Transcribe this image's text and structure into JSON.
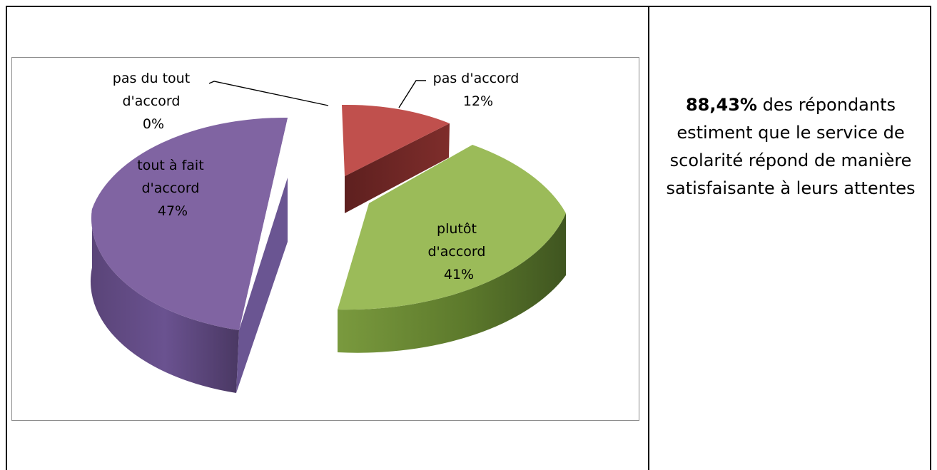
{
  "chart_data": {
    "type": "pie",
    "title": "",
    "categories": [
      "pas d'accord",
      "plutôt d'accord",
      "tout à fait d'accord",
      "pas du tout d'accord"
    ],
    "values": [
      12,
      41,
      47,
      0
    ],
    "unit": "%",
    "labels": [
      {
        "lines": [
          "pas d'accord",
          "12%"
        ]
      },
      {
        "lines": [
          "plutôt",
          "d'accord",
          "41%"
        ]
      },
      {
        "lines": [
          "tout à fait",
          "d'accord",
          "47%"
        ]
      },
      {
        "lines": [
          "pas du tout",
          "d'accord",
          "0%"
        ]
      }
    ],
    "colors": {
      "pas d'accord": "#c0504d",
      "plutôt d'accord": "#9bbb59",
      "tout à fait d'accord": "#8064a2",
      "pas du tout d'accord": "#4f81bd"
    },
    "style": "3D exploded pie"
  },
  "summary": {
    "highlight": "88,43%",
    "text": " des répondants estiment que le service de scolarité répond de manière satisfaisante à leurs attentes"
  }
}
